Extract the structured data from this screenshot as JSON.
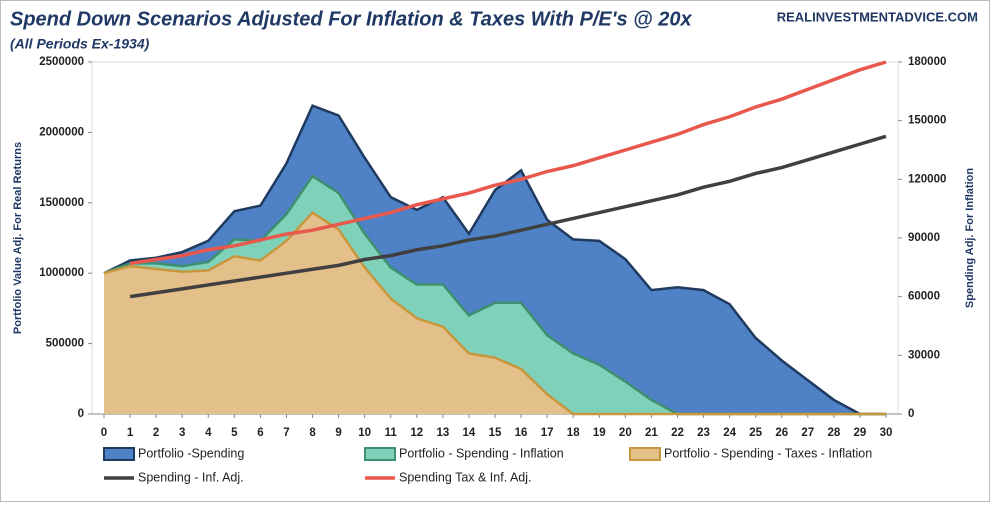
{
  "chart_data": {
    "type": "combo",
    "title": "Spend Down Scenarios Adjusted For Inflation & Taxes With P/E's @ 20x",
    "subtitle": "(All Periods Ex-1934)",
    "watermark": "REALINVESTMENTADVICE.COM",
    "y_label": "Portfolio Value Adj. For Real Returns",
    "y2_label": "Spending Adj. For Inflation",
    "x": [
      0,
      1,
      2,
      3,
      4,
      5,
      6,
      7,
      8,
      9,
      10,
      11,
      12,
      13,
      14,
      15,
      16,
      17,
      18,
      19,
      20,
      21,
      22,
      23,
      24,
      25,
      26,
      27,
      28,
      29,
      30
    ],
    "xlim": [
      0,
      30
    ],
    "ylim": [
      0,
      2500000
    ],
    "yticks": [
      0,
      500000,
      1000000,
      1500000,
      2000000,
      2500000
    ],
    "y2lim": [
      0,
      180000
    ],
    "y2ticks": [
      0,
      30000,
      60000,
      90000,
      120000,
      150000,
      180000
    ],
    "series": [
      {
        "name": "Portfolio -Spending",
        "type": "area",
        "color": "#4f81c7",
        "stroke": "#1f3a5f",
        "values": [
          1000000,
          1090000,
          1110000,
          1150000,
          1230000,
          1440000,
          1480000,
          1780000,
          2190000,
          2120000,
          1820000,
          1540000,
          1450000,
          1540000,
          1280000,
          1590000,
          1730000,
          1380000,
          1240000,
          1230000,
          1100000,
          880000,
          900000,
          880000,
          780000,
          540000,
          380000,
          240000,
          100000,
          0,
          0
        ]
      },
      {
        "name": "Portfolio - Spending - Inflation",
        "type": "area",
        "color": "#7fd1b9",
        "stroke": "#3e8f6e",
        "values": [
          1000000,
          1070000,
          1070000,
          1050000,
          1080000,
          1240000,
          1230000,
          1420000,
          1690000,
          1570000,
          1280000,
          1040000,
          920000,
          920000,
          700000,
          790000,
          790000,
          560000,
          430000,
          350000,
          230000,
          100000,
          0,
          0,
          0,
          0,
          0,
          0,
          0,
          0,
          0
        ]
      },
      {
        "name": "Portfolio - Spending - Taxes - Inflation",
        "type": "area",
        "color": "#e3bf8a",
        "stroke": "#c8963c",
        "values": [
          1000000,
          1050000,
          1030000,
          1010000,
          1020000,
          1120000,
          1090000,
          1230000,
          1430000,
          1310000,
          1040000,
          820000,
          680000,
          620000,
          430000,
          400000,
          320000,
          140000,
          0,
          0,
          0,
          0,
          0,
          0,
          0,
          0,
          0,
          0,
          0,
          0,
          0
        ]
      },
      {
        "name": "Spending - Inf. Adj.",
        "type": "line",
        "axis": "y2",
        "color": "#404040",
        "values": [
          null,
          60000,
          62000,
          64000,
          66000,
          68000,
          70000,
          72000,
          74000,
          76000,
          79000,
          81000,
          84000,
          86000,
          89000,
          91000,
          94000,
          97000,
          100000,
          103000,
          106000,
          109000,
          112000,
          116000,
          119000,
          123000,
          126000,
          130000,
          134000,
          138000,
          142000
        ]
      },
      {
        "name": "Spending Tax & Inf. Adj.",
        "type": "line",
        "axis": "y2",
        "color": "#e8584c",
        "values": [
          null,
          77000,
          79000,
          81000,
          84000,
          86000,
          89000,
          92000,
          94000,
          97000,
          100000,
          103000,
          107000,
          110000,
          113000,
          117000,
          120000,
          124000,
          127000,
          131000,
          135000,
          139000,
          143000,
          148000,
          152000,
          157000,
          161000,
          166000,
          171000,
          176000,
          180000
        ]
      }
    ]
  }
}
